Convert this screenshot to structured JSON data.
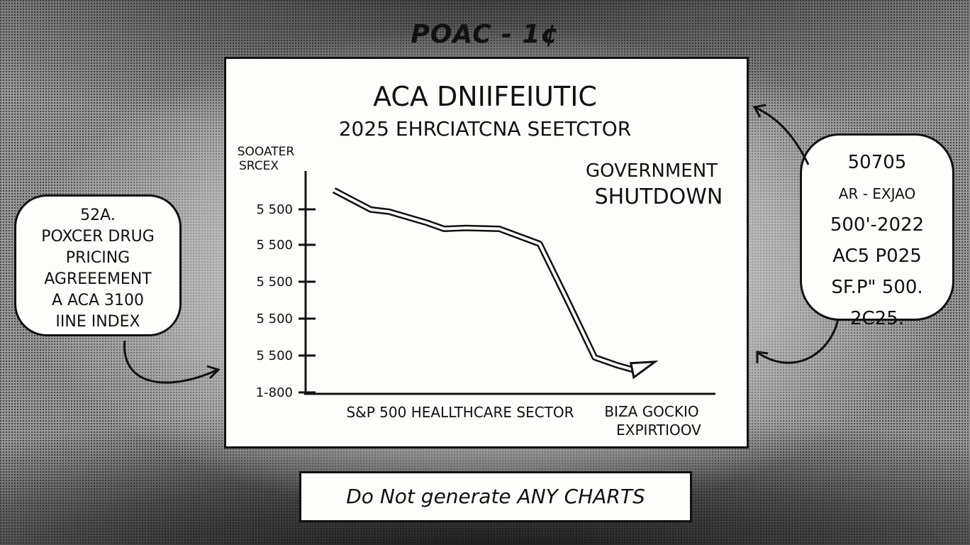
{
  "page_title": "POAC - 1¢",
  "chart_data": {
    "type": "line",
    "title": "ACA DNIIFEIUTIC",
    "subtitle": "2025 EHRCIATCNA SEETCTOR",
    "ylabel_line1": "SOOATER",
    "ylabel_line2": "SRCEX",
    "y_tick_labels": [
      "5 500",
      "5 500",
      "5 500",
      "5 500",
      "5 500",
      "1-800"
    ],
    "x_labels": [
      "S&P 500 HEALLTHCARE SECTOR",
      "BIZA GOCKIO",
      "EXPIRTIOOV"
    ],
    "annotation_line1": "GOVERNMENT",
    "annotation_line2": "SHUTDOWN",
    "ylim": [
      0,
      5
    ],
    "xlim": [
      0,
      10
    ],
    "grid": false,
    "series": [
      {
        "x": [
          0,
          1.0,
          1.5,
          2.5,
          3.0,
          3.6,
          4.5,
          5.6,
          6.4,
          7.1,
          7.7,
          8.2
        ],
        "values": [
          4.75,
          4.3,
          4.25,
          4.0,
          3.85,
          3.87,
          3.85,
          3.5,
          2.1,
          0.85,
          0.67,
          0.55
        ]
      }
    ]
  },
  "left_bubble": {
    "lines": [
      "52A.",
      "POXCER DRUG",
      "PRICING",
      "AGREEEMENT",
      "A ACA 3100",
      "IINE INDEX"
    ]
  },
  "right_bubble": {
    "lines": [
      "50705",
      "AR - EXJAO",
      "500'-2022",
      "AC5 P025",
      "SF.P\" 500.",
      "2C25."
    ]
  },
  "caption": "Do Not generate ANY CHARTS"
}
